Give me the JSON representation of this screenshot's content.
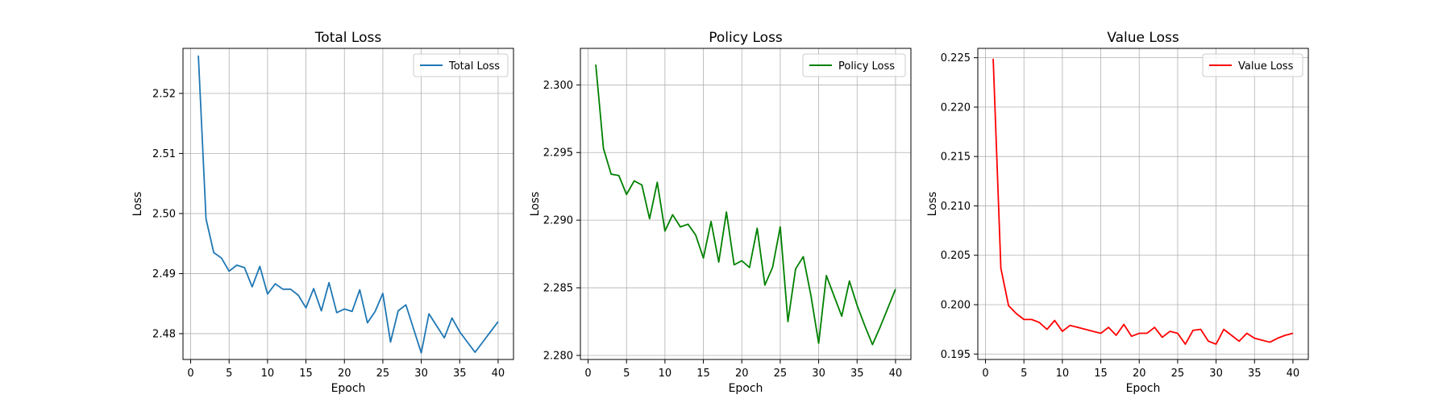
{
  "chart_data": [
    {
      "type": "line",
      "title": "Total Loss",
      "xlabel": "Epoch",
      "ylabel": "Loss",
      "xlim": [
        -1,
        42
      ],
      "ylim": [
        2.4757,
        2.5275
      ],
      "xticks": [
        0,
        5,
        10,
        15,
        20,
        25,
        30,
        35,
        40
      ],
      "xtick_labels": [
        "0",
        "5",
        "10",
        "15",
        "20",
        "25",
        "30",
        "35",
        "40"
      ],
      "yticks": [
        2.48,
        2.49,
        2.5,
        2.51,
        2.52
      ],
      "ytick_labels": [
        "2.48",
        "2.49",
        "2.50",
        "2.51",
        "2.52"
      ],
      "grid": true,
      "legend_position": "top-right",
      "series": [
        {
          "name": "Total Loss",
          "color": "#1f77b4",
          "x": [
            1,
            2,
            3,
            4,
            5,
            6,
            7,
            8,
            9,
            10,
            11,
            12,
            13,
            14,
            15,
            16,
            17,
            18,
            19,
            20,
            21,
            22,
            23,
            24,
            25,
            26,
            27,
            28,
            29,
            30,
            31,
            32,
            33,
            34,
            35,
            36,
            37,
            38,
            39,
            40
          ],
          "y": [
            2.5263,
            2.4991,
            2.4935,
            2.4926,
            2.4904,
            2.4914,
            2.491,
            2.4878,
            2.4912,
            2.4866,
            2.4883,
            2.4874,
            2.4874,
            2.4864,
            2.4843,
            2.4875,
            2.4838,
            2.4885,
            2.4835,
            2.4841,
            2.4837,
            2.4873,
            2.4818,
            2.4837,
            2.4867,
            2.4786,
            2.4838,
            2.4848,
            2.4808,
            2.4768,
            2.4833,
            2.4813,
            2.4793,
            2.4826,
            2.4803,
            2.4786,
            2.4769,
            2.4786,
            2.4803,
            2.482
          ]
        }
      ]
    },
    {
      "type": "line",
      "title": "Policy Loss",
      "xlabel": "Epoch",
      "ylabel": "Loss",
      "xlim": [
        -1,
        42
      ],
      "ylim": [
        2.2797,
        2.3027
      ],
      "xticks": [
        0,
        5,
        10,
        15,
        20,
        25,
        30,
        35,
        40
      ],
      "xtick_labels": [
        "0",
        "5",
        "10",
        "15",
        "20",
        "25",
        "30",
        "35",
        "40"
      ],
      "yticks": [
        2.28,
        2.285,
        2.29,
        2.295,
        2.3
      ],
      "ytick_labels": [
        "2.280",
        "2.285",
        "2.290",
        "2.295",
        "2.300"
      ],
      "grid": true,
      "legend_position": "top-right",
      "series": [
        {
          "name": "Policy Loss",
          "color": "#008000",
          "x": [
            1,
            2,
            3,
            4,
            5,
            6,
            7,
            8,
            9,
            10,
            11,
            12,
            13,
            14,
            15,
            16,
            17,
            18,
            19,
            20,
            21,
            22,
            23,
            24,
            25,
            26,
            27,
            28,
            29,
            30,
            31,
            32,
            33,
            34,
            35,
            36,
            37,
            38,
            39,
            40
          ],
          "y": [
            2.3015,
            2.2953,
            2.2934,
            2.2933,
            2.2919,
            2.2929,
            2.2926,
            2.2901,
            2.2928,
            2.2892,
            2.2904,
            2.2895,
            2.2897,
            2.2889,
            2.2872,
            2.2899,
            2.2869,
            2.2906,
            2.2867,
            2.287,
            2.2865,
            2.2894,
            2.2852,
            2.2865,
            2.2895,
            2.2825,
            2.2864,
            2.2873,
            2.2844,
            2.2809,
            2.2859,
            2.2844,
            2.2829,
            2.2855,
            2.2837,
            2.2822,
            2.2808,
            2.2821,
            2.2835,
            2.2849
          ]
        }
      ]
    },
    {
      "type": "line",
      "title": "Value Loss",
      "xlabel": "Epoch",
      "ylabel": "Loss",
      "xlim": [
        -1,
        42
      ],
      "ylim": [
        0.19445,
        0.22595
      ],
      "xticks": [
        0,
        5,
        10,
        15,
        20,
        25,
        30,
        35,
        40
      ],
      "xtick_labels": [
        "0",
        "5",
        "10",
        "15",
        "20",
        "25",
        "30",
        "35",
        "40"
      ],
      "yticks": [
        0.195,
        0.2,
        0.205,
        0.21,
        0.215,
        0.22,
        0.225
      ],
      "ytick_labels": [
        "0.195",
        "0.200",
        "0.205",
        "0.210",
        "0.215",
        "0.220",
        "0.225"
      ],
      "grid": true,
      "legend_position": "top-right",
      "series": [
        {
          "name": "Value Loss",
          "color": "#ff0000",
          "x": [
            1,
            2,
            3,
            4,
            5,
            6,
            7,
            8,
            9,
            10,
            11,
            12,
            13,
            14,
            15,
            16,
            17,
            18,
            19,
            20,
            21,
            22,
            23,
            24,
            25,
            26,
            27,
            28,
            29,
            30,
            31,
            32,
            33,
            34,
            35,
            36,
            37,
            38,
            39,
            40
          ],
          "y": [
            0.2249,
            0.2037,
            0.1999,
            0.1991,
            0.1985,
            0.1985,
            0.1982,
            0.1975,
            0.1984,
            0.1973,
            0.1979,
            0.1977,
            0.1975,
            0.1973,
            0.1971,
            0.1977,
            0.1969,
            0.198,
            0.1968,
            0.1971,
            0.1971,
            0.1977,
            0.1967,
            0.1973,
            0.1971,
            0.196,
            0.1974,
            0.1975,
            0.1963,
            0.196,
            0.1975,
            0.1969,
            0.1963,
            0.1971,
            0.1966,
            0.1964,
            0.1962,
            0.1966,
            0.1969,
            0.1971
          ]
        }
      ]
    }
  ]
}
